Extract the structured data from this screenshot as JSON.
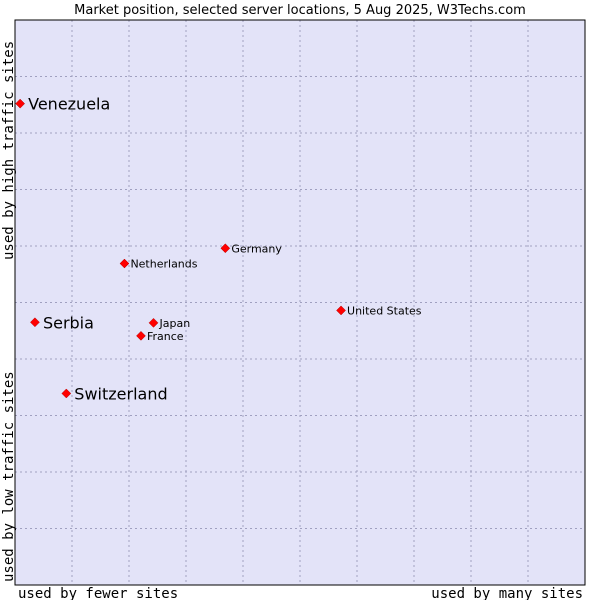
{
  "chart_data": {
    "type": "scatter",
    "title": "Market position, selected server locations, 5 Aug 2025, W3Techs.com",
    "xlabel_left": "used by fewer sites",
    "xlabel_right": "used by many sites",
    "ylabel_top": "used by high traffic sites",
    "ylabel_bottom": "used by low traffic sites",
    "xlim": [
      0,
      100
    ],
    "ylim": [
      0,
      100
    ],
    "grid": true,
    "colors": {
      "plot_bg": "#e3e3f8",
      "grid": "#a0a0c0",
      "border": "#000000",
      "point": "#ff0000"
    },
    "points": [
      {
        "name": "Venezuela",
        "x": 0.9,
        "y": 85.2,
        "emphasis": true
      },
      {
        "name": "Serbia",
        "x": 3.5,
        "y": 46.5,
        "emphasis": true
      },
      {
        "name": "Switzerland",
        "x": 9.0,
        "y": 33.9,
        "emphasis": true
      },
      {
        "name": "Netherlands",
        "x": 19.2,
        "y": 56.9,
        "emphasis": false
      },
      {
        "name": "Germany",
        "x": 36.9,
        "y": 59.6,
        "emphasis": false
      },
      {
        "name": "Japan",
        "x": 24.3,
        "y": 46.4,
        "emphasis": false
      },
      {
        "name": "France",
        "x": 22.1,
        "y": 44.1,
        "emphasis": false
      },
      {
        "name": "United States",
        "x": 57.2,
        "y": 48.6,
        "emphasis": false
      }
    ]
  }
}
